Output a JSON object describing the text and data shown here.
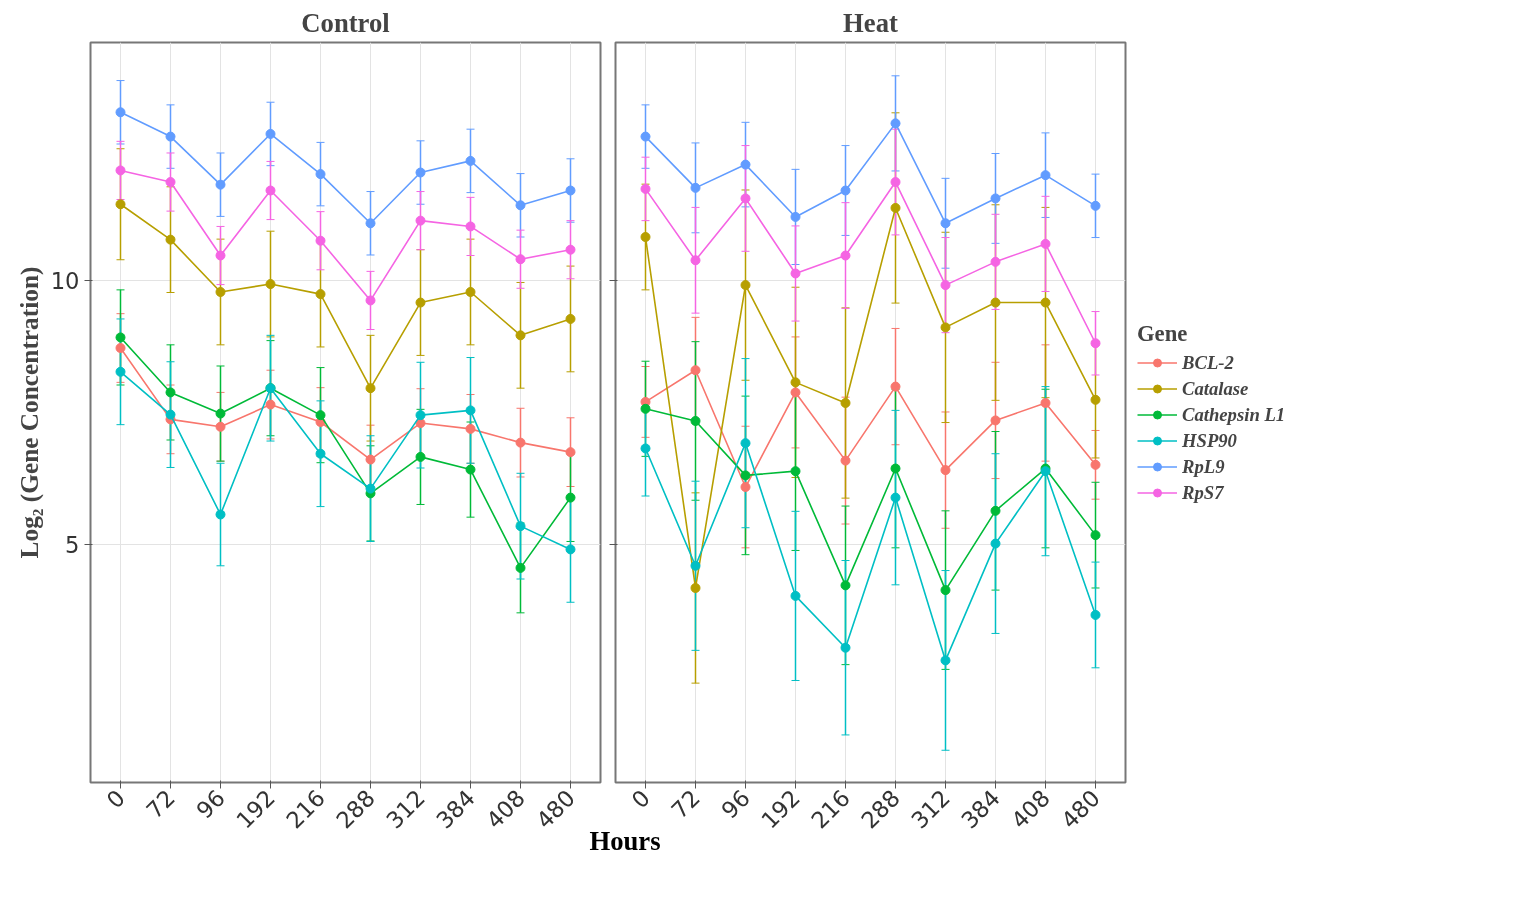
{
  "chart_data": [
    {
      "type": "line",
      "title": "Control",
      "xlabel": "Hours",
      "ylabel": "Log₂ (Gene Concentration)",
      "categories": [
        "0",
        "72",
        "96",
        "192",
        "216",
        "288",
        "312",
        "384",
        "408",
        "480"
      ],
      "ylim": [
        0.5,
        14.5
      ],
      "yticks": [
        5,
        10
      ],
      "grid": true,
      "marker": "circle",
      "line_style": "solid",
      "series": [
        {
          "color": "#f8766d",
          "values": [
            8.72,
            7.37,
            7.23,
            7.65,
            7.32,
            6.61,
            7.3,
            7.19,
            6.93,
            6.75
          ],
          "errors": [
            0.65,
            0.65,
            0.65,
            0.65,
            0.65,
            0.65,
            0.65,
            0.65,
            0.65,
            0.65
          ]
        },
        {
          "color": "#b79f00",
          "values": [
            11.44,
            10.77,
            9.78,
            9.93,
            9.74,
            7.96,
            9.58,
            9.78,
            8.96,
            9.27
          ],
          "errors": [
            1.05,
            1.0,
            1.0,
            1.0,
            1.0,
            1.0,
            1.0,
            1.0,
            1.0,
            1.0
          ]
        },
        {
          "color": "#00ba38",
          "values": [
            8.92,
            7.88,
            7.48,
            7.96,
            7.45,
            5.97,
            6.66,
            6.42,
            4.56,
            5.89
          ],
          "errors": [
            0.9,
            0.9,
            0.9,
            0.9,
            0.9,
            0.9,
            0.9,
            0.9,
            0.85,
            0.83
          ]
        },
        {
          "color": "#00bfc4",
          "values": [
            8.27,
            7.46,
            5.57,
            7.96,
            6.72,
            6.06,
            7.45,
            7.54,
            5.35,
            4.91
          ],
          "errors": [
            1.0,
            1.0,
            0.97,
            1.0,
            1.0,
            1.0,
            1.0,
            1.0,
            1.0,
            1.0
          ]
        },
        {
          "color": "#619cff",
          "values": [
            13.18,
            12.72,
            11.81,
            12.77,
            12.01,
            11.08,
            12.04,
            12.26,
            11.42,
            11.7
          ],
          "errors": [
            0.6,
            0.6,
            0.6,
            0.6,
            0.6,
            0.6,
            0.6,
            0.6,
            0.6,
            0.6
          ]
        },
        {
          "color": "#f564e3",
          "values": [
            12.08,
            11.86,
            10.47,
            11.7,
            10.75,
            9.62,
            11.13,
            11.02,
            10.4,
            10.58
          ],
          "errors": [
            0.55,
            0.55,
            0.55,
            0.55,
            0.55,
            0.55,
            0.55,
            0.55,
            0.55,
            0.55
          ]
        }
      ]
    },
    {
      "type": "line",
      "title": "Heat",
      "legend_title": "Gene",
      "categories": [
        "0",
        "72",
        "96",
        "192",
        "216",
        "288",
        "312",
        "384",
        "408",
        "480"
      ],
      "ylim": [
        0.5,
        14.5
      ],
      "yticks": [
        5,
        10
      ],
      "tick_labels": "x",
      "grid": true,
      "legend": "right",
      "marker": "circle",
      "line_style": "solid",
      "series": [
        {
          "name": "BCL-2",
          "color": "#f8766d",
          "values": [
            7.7,
            8.3,
            6.09,
            7.88,
            6.59,
            7.99,
            6.41,
            7.35,
            7.68,
            6.51
          ],
          "errors": [
            0.67,
            1.0,
            1.15,
            1.05,
            1.2,
            1.1,
            1.1,
            1.1,
            1.1,
            0.65
          ]
        },
        {
          "name": "Catalase",
          "color": "#b79f00",
          "values": [
            10.82,
            4.18,
            9.91,
            8.07,
            7.68,
            11.37,
            9.11,
            9.58,
            9.58,
            7.74
          ],
          "errors": [
            1.0,
            1.8,
            1.8,
            1.8,
            1.8,
            1.8,
            1.8,
            1.85,
            1.8,
            1.1
          ]
        },
        {
          "name": "Cathepsin L1",
          "color": "#00ba38",
          "values": [
            7.57,
            7.34,
            6.31,
            6.39,
            4.23,
            6.44,
            4.14,
            5.64,
            6.44,
            5.18
          ],
          "errors": [
            0.9,
            1.5,
            1.5,
            1.5,
            1.5,
            1.5,
            1.5,
            1.5,
            1.5,
            1.0
          ]
        },
        {
          "name": "HSP90",
          "color": "#00bfc4",
          "values": [
            6.82,
            4.6,
            6.92,
            4.03,
            3.05,
            5.89,
            2.81,
            5.02,
            6.39,
            3.67
          ],
          "errors": [
            0.9,
            1.6,
            1.6,
            1.6,
            1.65,
            1.65,
            1.7,
            1.7,
            1.6,
            1.0
          ]
        },
        {
          "name": "RpL9",
          "color": "#619cff",
          "values": [
            12.72,
            11.75,
            12.19,
            11.2,
            11.7,
            12.97,
            11.08,
            11.55,
            11.99,
            11.41
          ],
          "errors": [
            0.6,
            0.85,
            0.8,
            0.9,
            0.85,
            0.9,
            0.85,
            0.85,
            0.8,
            0.6
          ]
        },
        {
          "name": "RpS7",
          "color": "#f564e3",
          "values": [
            11.73,
            10.38,
            11.55,
            10.13,
            10.47,
            11.86,
            9.91,
            10.35,
            10.69,
            8.81
          ],
          "errors": [
            0.6,
            1.0,
            1.0,
            0.9,
            1.0,
            1.0,
            0.9,
            0.9,
            0.9,
            0.6
          ]
        }
      ]
    }
  ]
}
